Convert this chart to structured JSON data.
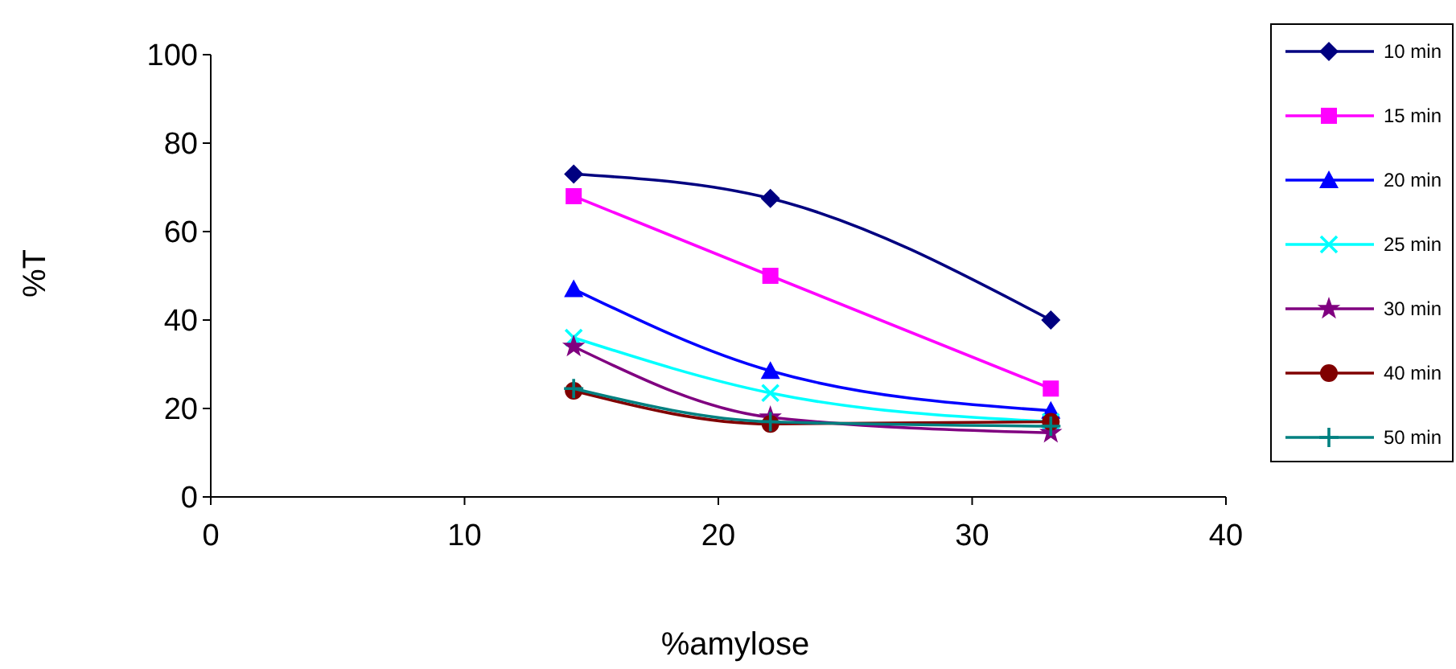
{
  "chart_data": {
    "type": "line",
    "xlabel": "%amylose",
    "ylabel": "%T",
    "xlim": [
      0,
      40
    ],
    "xticks": [
      0,
      10,
      20,
      30,
      40
    ],
    "ylim": [
      0,
      100
    ],
    "yticks": [
      0,
      20,
      40,
      60,
      80,
      100
    ],
    "grid": false,
    "legend": "right",
    "line_style": "solid",
    "x": [
      14.3,
      22.05,
      33.1
    ],
    "series": [
      {
        "name": "10 min",
        "color": "#000080",
        "marker": "diamond",
        "values": [
          73,
          67.5,
          40
        ]
      },
      {
        "name": "15 min",
        "color": "#ff00ff",
        "marker": "square",
        "values": [
          68,
          50,
          24.5
        ]
      },
      {
        "name": "20 min",
        "color": "#0000ff",
        "marker": "triangle",
        "values": [
          47,
          28.5,
          19.5
        ]
      },
      {
        "name": "25 min",
        "color": "#00ffff",
        "marker": "cross",
        "values": [
          36,
          23.5,
          17
        ]
      },
      {
        "name": "30 min",
        "color": "#800080",
        "marker": "star",
        "values": [
          34,
          18,
          14.5
        ]
      },
      {
        "name": "40 min",
        "color": "#800000",
        "marker": "circle",
        "values": [
          24,
          16.5,
          17
        ]
      },
      {
        "name": "50 min",
        "color": "#008080",
        "marker": "plus",
        "values": [
          24.5,
          17,
          16
        ]
      }
    ]
  }
}
